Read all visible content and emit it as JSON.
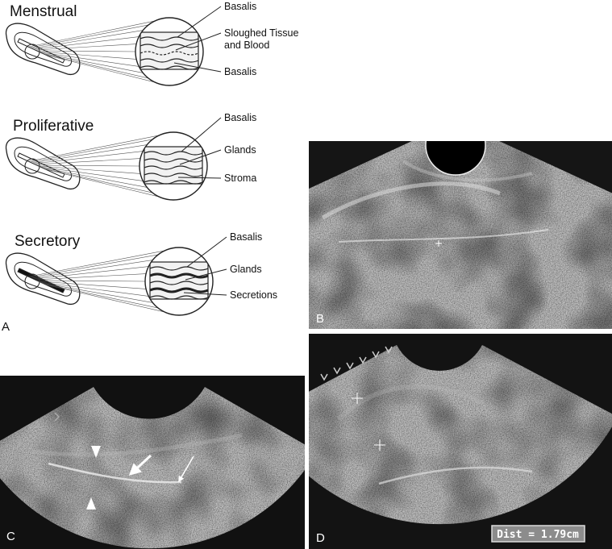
{
  "figure": {
    "panel_a": {
      "label": "A",
      "phases": [
        {
          "name": "Menstrual",
          "callouts": [
            [
              "Basalis"
            ],
            [
              "Sloughed Tissue",
              "and Blood"
            ],
            [
              "Basalis"
            ]
          ]
        },
        {
          "name": "Proliferative",
          "callouts": [
            [
              "Basalis"
            ],
            [
              "Glands"
            ],
            [
              "Stroma"
            ]
          ]
        },
        {
          "name": "Secretory",
          "callouts": [
            [
              "Basalis"
            ],
            [
              "Glands"
            ],
            [
              "Secretions"
            ]
          ]
        }
      ]
    },
    "panel_b": {
      "label": "B"
    },
    "panel_c": {
      "label": "C"
    },
    "panel_d": {
      "label": "D",
      "measurement": "Dist = 1.79cm"
    }
  }
}
